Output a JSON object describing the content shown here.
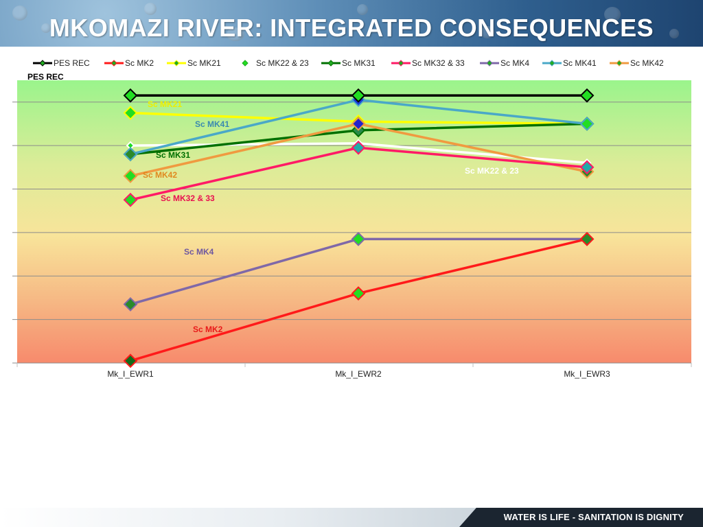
{
  "slide": {
    "title": "MKOMAZI RIVER:  INTEGRATED CONSEQUENCES",
    "footer": "WATER IS LIFE - SANITATION IS DIGNITY"
  },
  "colors": {
    "PES REC": "#000000",
    "Sc MK2": "#ff1a1a",
    "Sc MK21": "#ffff00",
    "Sc MK22 & 23": "#ffffff",
    "Sc MK31": "#007000",
    "Sc MK32 & 33": "#ff1a66",
    "Sc MK4": "#7f68a8",
    "Sc MK41": "#4aa8c8",
    "Sc MK42": "#f09a40"
  },
  "chart_data": {
    "type": "line",
    "categories": [
      "Mk_I_EWR1",
      "Mk_I_EWR2",
      "Mk_I_EWR3"
    ],
    "ylim": [
      0,
      6.5
    ],
    "grid": true,
    "legend": "top",
    "y_axis_label": "PES REC",
    "series": [
      {
        "name": "PES REC",
        "values": [
          6.15,
          6.15,
          6.15
        ]
      },
      {
        "name": "Sc MK2",
        "values": [
          0.05,
          1.6,
          2.85
        ]
      },
      {
        "name": "Sc MK21",
        "values": [
          5.75,
          5.55,
          5.5
        ]
      },
      {
        "name": "Sc MK22 & 23",
        "values": [
          5.0,
          5.05,
          4.6
        ]
      },
      {
        "name": "Sc MK31",
        "values": [
          4.8,
          5.35,
          5.5
        ]
      },
      {
        "name": "Sc MK32 & 33",
        "values": [
          3.75,
          4.95,
          4.5
        ]
      },
      {
        "name": "Sc MK4",
        "values": [
          1.35,
          2.85,
          2.85
        ]
      },
      {
        "name": "Sc MK41",
        "values": [
          4.8,
          6.05,
          5.5
        ]
      },
      {
        "name": "Sc MK42",
        "values": [
          4.3,
          5.5,
          4.4
        ]
      }
    ],
    "annotations": [
      {
        "text": "Sc MK21",
        "series": "Sc MK21"
      },
      {
        "text": "Sc MK41",
        "series": "Sc MK41"
      },
      {
        "text": "Sc MK31",
        "series": "Sc MK31"
      },
      {
        "text": "Sc MK42",
        "series": "Sc MK42"
      },
      {
        "text": "Sc MK32 & 33",
        "series": "Sc MK32 & 33"
      },
      {
        "text": "Sc MK22 & 23",
        "series": "Sc MK22 & 23"
      },
      {
        "text": "Sc MK4",
        "series": "Sc MK4"
      },
      {
        "text": "Sc MK2",
        "series": "Sc MK2"
      }
    ]
  }
}
